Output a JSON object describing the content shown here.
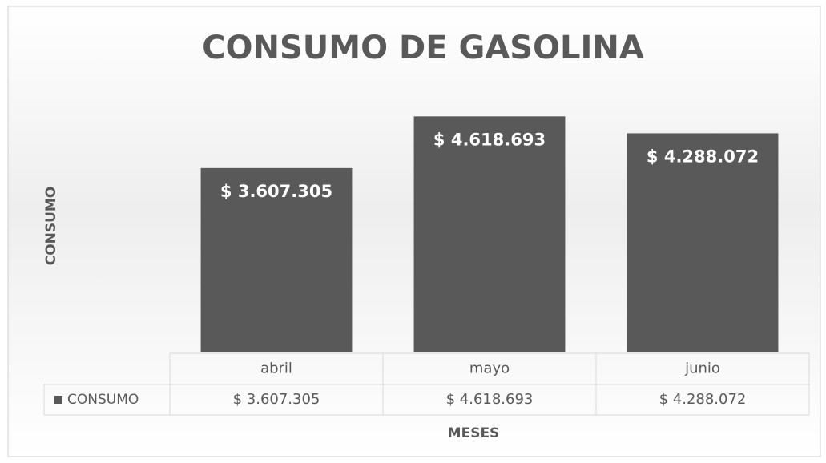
{
  "chart_data": {
    "type": "bar",
    "title": "CONSUMO DE GASOLINA",
    "x_label": "MESES",
    "y_label": "CONSUMO",
    "categories": [
      "abril",
      "mayo",
      "junio"
    ],
    "series": [
      {
        "name": "CONSUMO",
        "color": "#595959",
        "values": [
          3607305,
          4618693,
          4288072
        ],
        "value_labels": [
          "$ 3.607.305",
          "$ 4.618.693",
          "$ 4.288.072"
        ]
      }
    ],
    "ylim": [
      0,
      5000000
    ],
    "data_table": true
  }
}
